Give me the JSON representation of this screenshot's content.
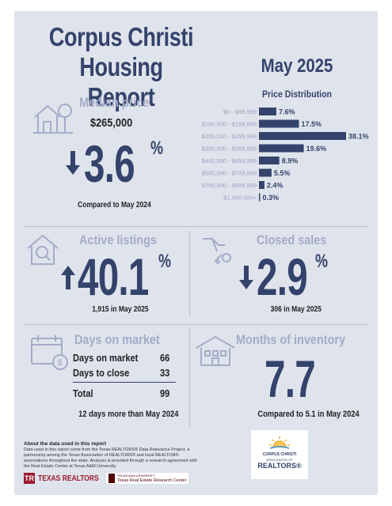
{
  "header": {
    "title_line1": "Corpus Christi",
    "title_line2": "Housing Report",
    "month": "May 2025"
  },
  "median_price": {
    "label": "Median price",
    "value": "$265,000",
    "change": "3.6",
    "percent_sign": "%",
    "direction": "down",
    "caption": "Compared to May 2024",
    "icon": "house-tree-icon"
  },
  "price_distribution": {
    "title": "Price Distribution",
    "bar_color": "#34436b",
    "chart_data": {
      "type": "bar",
      "orientation": "horizontal",
      "categories": [
        "$0 - $99,999",
        "$100,000 - $199,999",
        "$200,000 - $299,999",
        "$300,000 - $399,999",
        "$400,000 - $499,999",
        "$500,000 - $749,999",
        "$750,000 - $999,999",
        "$1,000,000+"
      ],
      "values": [
        7.6,
        17.5,
        38.1,
        19.6,
        8.9,
        5.5,
        2.4,
        0.3
      ],
      "labels": [
        "7.6%",
        "17.5%",
        "38.1%",
        "19.6%",
        "8.9%",
        "5.5%",
        "2.4%",
        "0.3%"
      ],
      "title": "Price Distribution",
      "xlabel": "",
      "ylabel": ""
    }
  },
  "active_listings": {
    "label": "Active listings",
    "change": "40.1",
    "percent_sign": "%",
    "direction": "up",
    "caption": "1,915 in May 2025",
    "icon": "house-magnifier-icon"
  },
  "closed_sales": {
    "label": "Closed sales",
    "change": "2.9",
    "percent_sign": "%",
    "direction": "down",
    "caption": "306 in May 2025",
    "icon": "hand-key-icon"
  },
  "days_on_market": {
    "label": "Days on market",
    "rows": [
      {
        "label": "Days on market",
        "value": "66"
      },
      {
        "label": "Days to close",
        "value": "33"
      }
    ],
    "total_label": "Total",
    "total_value": "99",
    "caption": "12 days more than May 2024",
    "icon": "calendar-dollar-icon"
  },
  "months_inventory": {
    "label": "Months of inventory",
    "value": "7.7",
    "caption": "Compared to 5.1 in May 2024",
    "icon": "building-icon"
  },
  "about": {
    "title": "About the data used in this report",
    "body": "Data used in this report come from the Texas REALTORS® Data Relevance Project, a partnership among the Texas Association of REALTORS® and local REALTOR® associations throughout the state. Analysis is provided through a research agreement with the Real Estate Center at Texas A&M University."
  },
  "footer": {
    "texas_realtors": "TEXAS REALTORS",
    "tamu_line1": "TEXAS A&M UNIVERSITY",
    "tamu_line2": "Texas Real Estate Research Center",
    "assoc_line1": "CORPUS CHRISTI",
    "assoc_line2": "ASSOCIATION OF",
    "assoc_line3": "REALTORS®"
  }
}
